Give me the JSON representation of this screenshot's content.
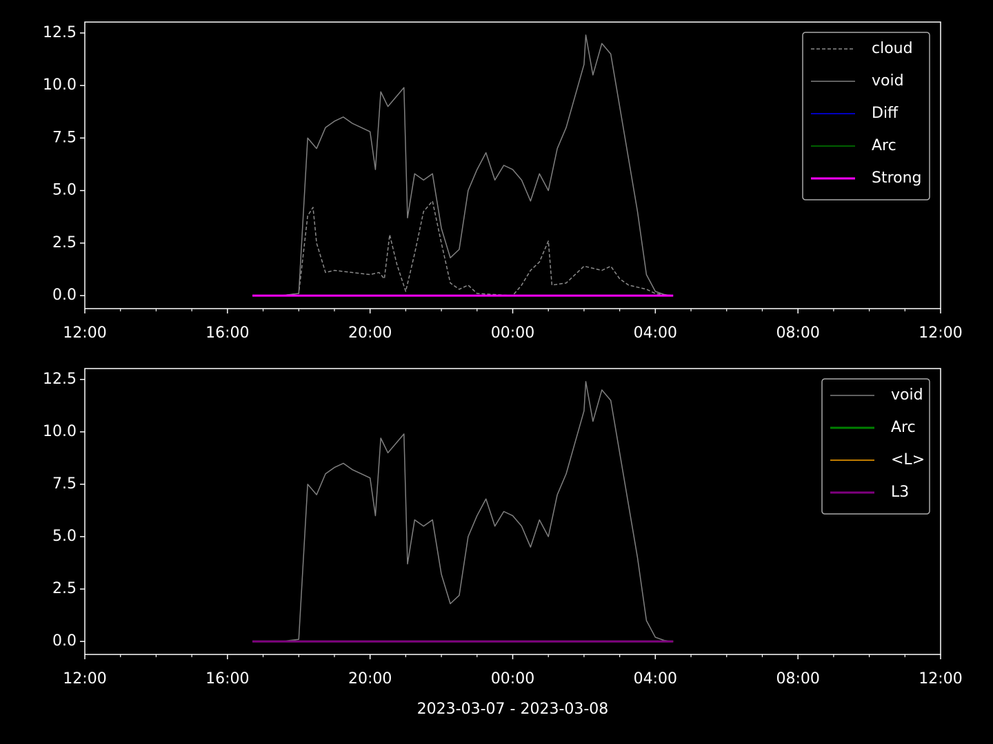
{
  "chart_data": [
    {
      "type": "line",
      "legend": "upper right",
      "xlim": [
        12,
        36
      ],
      "xticks": [
        {
          "value": 12,
          "label": "12:00"
        },
        {
          "value": 16,
          "label": "16:00"
        },
        {
          "value": 20,
          "label": "20:00"
        },
        {
          "value": 24,
          "label": "00:00"
        },
        {
          "value": 28,
          "label": "04:00"
        },
        {
          "value": 32,
          "label": "08:00"
        },
        {
          "value": 36,
          "label": "12:00"
        }
      ],
      "xminorticks": [
        13,
        14,
        15,
        17,
        18,
        19,
        21,
        22,
        23,
        25,
        26,
        27,
        29,
        30,
        31,
        33,
        34,
        35
      ],
      "ylim": [
        -0.62,
        13.02
      ],
      "yticks": [
        {
          "value": 0,
          "label": "0.0"
        },
        2.5,
        {
          "value": 5,
          "label": "5.0"
        },
        7.5,
        {
          "value": 10,
          "label": "10.0"
        },
        12.5
      ],
      "series": [
        {
          "name": "cloud",
          "color": "#8c8c8c",
          "linestyle": "dashed",
          "linewidth": 1.5,
          "x": [
            16.7,
            17.5,
            18.0,
            18.25,
            18.4,
            18.5,
            18.75,
            19.0,
            19.5,
            20.0,
            20.25,
            20.4,
            20.55,
            20.75,
            21.0,
            21.25,
            21.5,
            21.75,
            22.0,
            22.25,
            22.5,
            22.75,
            23.0,
            24.0,
            24.25,
            24.5,
            24.75,
            25.0,
            25.1,
            25.5,
            25.75,
            26.0,
            26.5,
            26.75,
            27.0,
            27.25,
            27.75,
            28.0,
            28.5
          ],
          "values": [
            0,
            0,
            0.1,
            3.8,
            4.2,
            2.5,
            1.1,
            1.2,
            1.1,
            1.0,
            1.1,
            0.8,
            2.9,
            1.5,
            0.2,
            2.0,
            4.0,
            4.5,
            2.5,
            0.6,
            0.3,
            0.5,
            0.1,
            0,
            0.5,
            1.2,
            1.6,
            2.6,
            0.5,
            0.6,
            1.0,
            1.4,
            1.2,
            1.4,
            0.8,
            0.5,
            0.3,
            0.1,
            0
          ]
        },
        {
          "name": "void",
          "color": "#808080",
          "linewidth": 1.5,
          "x": [
            16.7,
            17.5,
            18.0,
            18.25,
            18.5,
            18.75,
            19.0,
            19.25,
            19.5,
            19.75,
            20.0,
            20.15,
            20.3,
            20.5,
            20.75,
            20.95,
            21.05,
            21.25,
            21.5,
            21.75,
            22.0,
            22.25,
            22.5,
            22.75,
            23.0,
            23.25,
            23.5,
            23.75,
            24.0,
            24.25,
            24.5,
            24.75,
            25.0,
            25.25,
            25.5,
            25.75,
            26.0,
            26.05,
            26.25,
            26.5,
            26.75,
            27.0,
            27.25,
            27.5,
            27.75,
            28.0,
            28.25,
            28.5
          ],
          "values": [
            0,
            0,
            0.1,
            7.5,
            7.0,
            8.0,
            8.3,
            8.5,
            8.2,
            8.0,
            7.8,
            6.0,
            9.7,
            9.0,
            9.5,
            9.9,
            3.7,
            5.8,
            5.5,
            5.8,
            3.2,
            1.8,
            2.2,
            5.0,
            6.0,
            6.8,
            5.5,
            6.2,
            6.0,
            5.5,
            4.5,
            5.8,
            5.0,
            7.0,
            8.0,
            9.5,
            11.0,
            12.4,
            10.5,
            12.0,
            11.5,
            9.0,
            6.5,
            4.0,
            1.0,
            0.2,
            0.05,
            0
          ]
        },
        {
          "name": "Diff",
          "color": "#0000ff",
          "linewidth": 1.5,
          "x": [
            16.7,
            28.5
          ],
          "values": [
            0,
            0
          ]
        },
        {
          "name": "Arc",
          "color": "#008000",
          "linewidth": 1.5,
          "x": [
            16.7,
            28.5
          ],
          "values": [
            0,
            0
          ]
        },
        {
          "name": "Strong",
          "color": "#ff00ff",
          "linewidth": 3,
          "x": [
            16.7,
            28.5
          ],
          "values": [
            0,
            0
          ]
        }
      ]
    },
    {
      "type": "line",
      "legend": "upper right",
      "xlabel": "2023-03-07 - 2023-03-08",
      "xlim": [
        12,
        36
      ],
      "xticks": [
        {
          "value": 12,
          "label": "12:00"
        },
        {
          "value": 16,
          "label": "16:00"
        },
        {
          "value": 20,
          "label": "20:00"
        },
        {
          "value": 24,
          "label": "00:00"
        },
        {
          "value": 28,
          "label": "04:00"
        },
        {
          "value": 32,
          "label": "08:00"
        },
        {
          "value": 36,
          "label": "12:00"
        }
      ],
      "xminorticks": [
        13,
        14,
        15,
        17,
        18,
        19,
        21,
        22,
        23,
        25,
        26,
        27,
        29,
        30,
        31,
        33,
        34,
        35
      ],
      "ylim": [
        -0.62,
        13.02
      ],
      "yticks": [
        {
          "value": 0,
          "label": "0.0"
        },
        2.5,
        {
          "value": 5,
          "label": "5.0"
        },
        7.5,
        {
          "value": 10,
          "label": "10.0"
        },
        12.5
      ],
      "series": [
        {
          "name": "void",
          "color": "#808080",
          "linewidth": 1.5,
          "x": [
            16.7,
            17.5,
            18.0,
            18.25,
            18.5,
            18.75,
            19.0,
            19.25,
            19.5,
            19.75,
            20.0,
            20.15,
            20.3,
            20.5,
            20.75,
            20.95,
            21.05,
            21.25,
            21.5,
            21.75,
            22.0,
            22.25,
            22.5,
            22.75,
            23.0,
            23.25,
            23.5,
            23.75,
            24.0,
            24.25,
            24.5,
            24.75,
            25.0,
            25.25,
            25.5,
            25.75,
            26.0,
            26.05,
            26.25,
            26.5,
            26.75,
            27.0,
            27.25,
            27.5,
            27.75,
            28.0,
            28.25,
            28.5
          ],
          "values": [
            0,
            0,
            0.1,
            7.5,
            7.0,
            8.0,
            8.3,
            8.5,
            8.2,
            8.0,
            7.8,
            6.0,
            9.7,
            9.0,
            9.5,
            9.9,
            3.7,
            5.8,
            5.5,
            5.8,
            3.2,
            1.8,
            2.2,
            5.0,
            6.0,
            6.8,
            5.5,
            6.2,
            6.0,
            5.5,
            4.5,
            5.8,
            5.0,
            7.0,
            8.0,
            9.5,
            11.0,
            12.4,
            10.5,
            12.0,
            11.5,
            9.0,
            6.5,
            4.0,
            1.0,
            0.2,
            0.05,
            0
          ]
        },
        {
          "name": "Arc",
          "color": "#008000",
          "linewidth": 3,
          "x": [
            16.7,
            28.5
          ],
          "values": [
            0,
            0
          ]
        },
        {
          "name": "<L>",
          "color": "#ffa500",
          "linewidth": 1.5,
          "x": [
            16.7,
            28.5
          ],
          "values": [
            0,
            0
          ]
        },
        {
          "name": "L3",
          "color": "#800080",
          "linewidth": 3,
          "x": [
            16.7,
            28.5
          ],
          "values": [
            0,
            0
          ]
        }
      ]
    }
  ]
}
